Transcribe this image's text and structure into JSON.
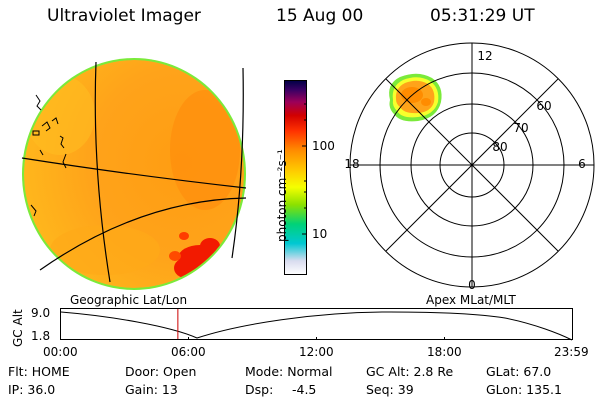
{
  "header": {
    "instrument": "Ultraviolet Imager",
    "date": "15 Aug 00",
    "time": "05:31:29 UT"
  },
  "colorbar": {
    "unit": "photon cm⁻²s⁻¹",
    "ticks": [
      "100",
      "10"
    ],
    "colors": [
      "#ffffff",
      "#d9dcef",
      "#00c8d2",
      "#00d278",
      "#8ce100",
      "#f5ff00",
      "#ffc800",
      "#ff8c00",
      "#ff3200",
      "#d20000",
      "#9b005a",
      "#3c0064",
      "#000046"
    ]
  },
  "polar_plot": {
    "mlt_labels": [
      "12",
      "18",
      "6",
      "0"
    ],
    "lat_labels": [
      "60",
      "70",
      "80"
    ]
  },
  "map_labels": {
    "left": "Geographic Lat/Lon",
    "right": "Apex MLat/MLT"
  },
  "altitude_strip": {
    "ylabel": "GC Alt",
    "yticks": [
      "9.0",
      "1.8"
    ],
    "xticks": [
      "00:00",
      "06:00",
      "12:00",
      "18:00",
      "23:59"
    ],
    "current_time_hours": 5.525
  },
  "info": {
    "filter": "Flt: HOME",
    "ip": "IP: 36.0",
    "door": "Door: Open",
    "gain": "Gain: 13",
    "mode": "Mode: Normal",
    "dsp_label": "Dsp:",
    "dsp_value": "-4.5",
    "gc_alt": "GC Alt: 2.8 Re",
    "seq": "Seq: 39",
    "glat": "GLat: 67.0",
    "glon": "GLon: 135.1"
  }
}
